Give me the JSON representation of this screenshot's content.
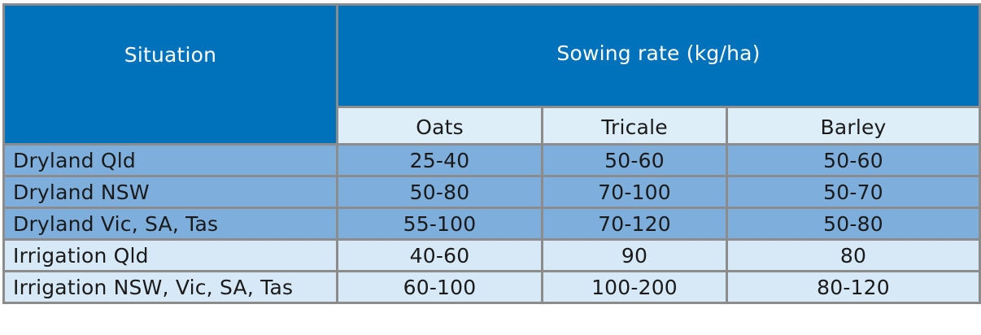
{
  "header": {
    "situation": "Situation",
    "sowing_rate": "Sowing rate (kg/ha)",
    "crops": [
      "Oats",
      "Tricale",
      "Barley"
    ]
  },
  "rows": [
    {
      "situation": "Dryland Qld",
      "oats": "25-40",
      "tricale": "50-60",
      "barley": "50-60"
    },
    {
      "situation": "Dryland NSW",
      "oats": "50-80",
      "tricale": "70-100",
      "barley": "50-70"
    },
    {
      "situation": "Dryland Vic, SA, Tas",
      "oats": "55-100",
      "tricale": "70-120",
      "barley": "50-80"
    },
    {
      "situation": "Irrigation Qld",
      "oats": "40-60",
      "tricale": "90",
      "barley": "80"
    },
    {
      "situation": "Irrigation NSW, Vic, SA, Tas",
      "oats": "60-100",
      "tricale": "100-200",
      "barley": "80-120"
    }
  ],
  "colors": {
    "header_bg": "#0072bc",
    "subheader_bg": "#ddeef9",
    "dryland_row_bg": "#7eaedc",
    "irrigation_row_bg": "#d7e9f7",
    "border": "#8c8c8c"
  }
}
